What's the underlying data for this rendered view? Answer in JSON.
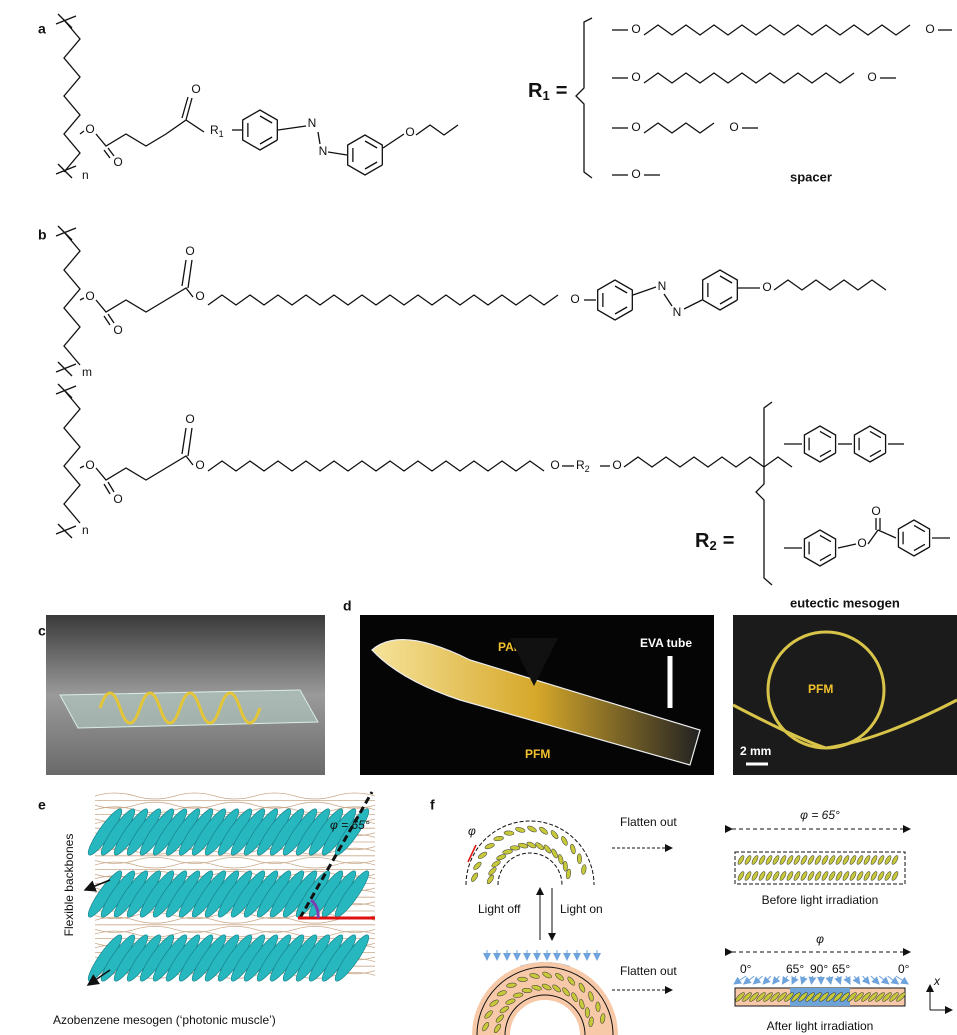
{
  "figure": {
    "panel_labels": [
      "a",
      "b",
      "c",
      "d",
      "e",
      "f"
    ],
    "a": {
      "atoms": [
        "O",
        "O",
        "O",
        "N",
        "N",
        "O"
      ],
      "r": "R",
      "r_sub": "1",
      "n": "n",
      "equals": "=",
      "spacer_atoms": [
        "O",
        "O",
        "O",
        "O",
        "O",
        "O",
        "O"
      ],
      "spacer": "spacer"
    },
    "b": {
      "upper_atoms": [
        "O",
        "O",
        "O",
        "O",
        "O",
        "N",
        "N",
        "O"
      ],
      "m": "m",
      "lower_atoms": [
        "O",
        "O",
        "O",
        "O",
        "O",
        "O"
      ],
      "r": "R",
      "r_sub": "2",
      "n": "n",
      "equals": "=",
      "mesogen": "eutectic mesogen",
      "mesogen_atom": "O",
      "mesogen_carbonyl": "O"
    },
    "d": {
      "pabbp": "PABBP",
      "eva": "EVA tube",
      "pfm": "PFM",
      "pfm_loop": "PFM",
      "scale": "2 mm"
    },
    "e": {
      "backbones": "Flexible backbones",
      "angle": "φ = 65°",
      "caption": "Azobenzene mesogen (‘photonic muscle’)"
    },
    "f": {
      "phi_small": "φ",
      "flatten_1": "Flatten out",
      "angle_top": "φ = 65°",
      "before": "Before light irradiation",
      "light_off": "Light off",
      "light_on": "Light on",
      "flatten_2": "Flatten out",
      "phi_bottom": "φ",
      "angles": [
        "0°",
        "65°",
        "90°",
        "65°",
        "0°"
      ],
      "axis_x": "x",
      "after": "After light irradiation"
    }
  }
}
